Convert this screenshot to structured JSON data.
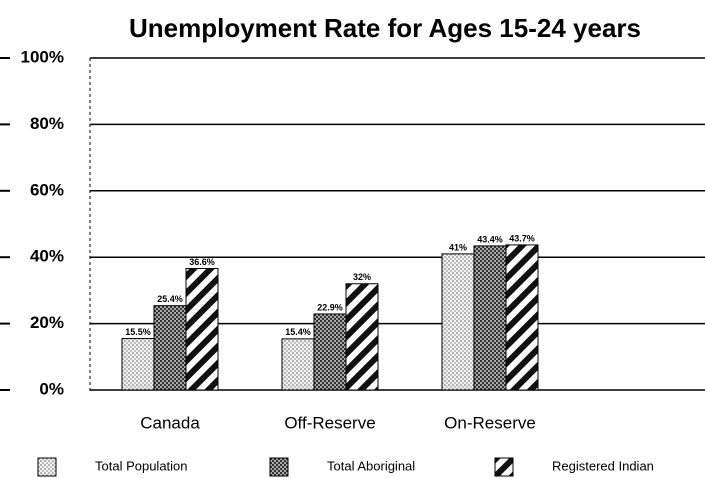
{
  "chart_data": {
    "type": "bar",
    "title": "Unemployment Rate for Ages 15-24 years",
    "categories": [
      "Canada",
      "Off-Reserve",
      "On-Reserve"
    ],
    "series": [
      {
        "name": "Total Population",
        "color": "#d0d0d0",
        "pattern": "dots",
        "values": [
          15.5,
          15.4,
          41
        ],
        "value_labels": [
          "15.5%",
          "15.4%",
          "41%"
        ]
      },
      {
        "name": "Total Aboriginal",
        "color": "#555555",
        "pattern": "crosshatch",
        "values": [
          25.4,
          22.9,
          43.4
        ],
        "value_labels": [
          "25.4%",
          "22.9%",
          "43.4%"
        ]
      },
      {
        "name": "Registered Indian",
        "color": "#111111",
        "pattern": "hatch",
        "values": [
          36.6,
          32,
          43.7
        ],
        "value_labels": [
          "36.6%",
          "32%",
          "43.7%"
        ]
      }
    ],
    "ylim": [
      0,
      100
    ],
    "yticks": [
      {
        "value": 0,
        "label": "0%"
      },
      {
        "value": 20,
        "label": "20%"
      },
      {
        "value": 40,
        "label": "40%"
      },
      {
        "value": 60,
        "label": "60%"
      },
      {
        "value": 80,
        "label": "80%"
      },
      {
        "value": 100,
        "label": "100%"
      }
    ],
    "grid": true,
    "legend": "bottom"
  }
}
